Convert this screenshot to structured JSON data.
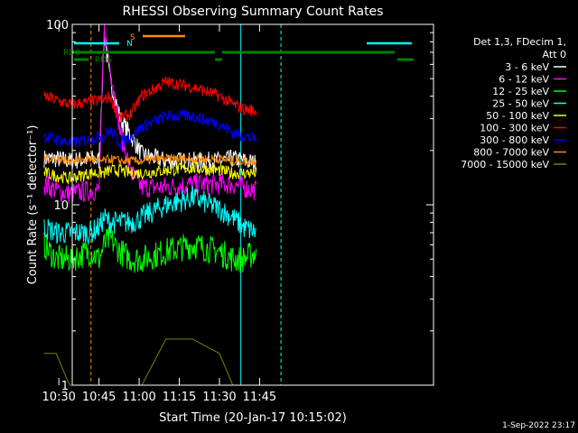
{
  "chart_data": {
    "type": "line",
    "title": "RHESSI Observing Summary Count Rates",
    "xlabel": "Start Time (20-Jan-17 10:15:02)",
    "ylabel": "Count Rate (s⁻¹ detector⁻¹)",
    "y_scale": "log",
    "ylim": [
      1,
      100
    ],
    "xlim_minutes": [
      20.0,
      155.0
    ],
    "xlim_time": [
      "10:35:02",
      "12:50:02"
    ],
    "x_ticks": [
      "10:30",
      "10:45",
      "11:00",
      "11:15",
      "11:30",
      "11:45"
    ],
    "x_tick_minutes": [
      15,
      30,
      45,
      60,
      75,
      90
    ],
    "y_ticks": [
      "1",
      "10",
      "100"
    ],
    "y_tick_values": [
      1,
      10,
      100
    ],
    "date_stamp": "1-Sep-2022 23:17",
    "legend": {
      "placement": "right",
      "header": [
        "Det 1,3, FDecim 1,",
        "Att 0"
      ],
      "entries": [
        {
          "label": "3 - 6 keV",
          "color": "#ffffff"
        },
        {
          "label": "6 - 12 keV",
          "color": "#ff00ff"
        },
        {
          "label": "12 - 25 keV",
          "color": "#00ff00"
        },
        {
          "label": "25 - 50 keV",
          "color": "#00ffff"
        },
        {
          "label": "50 - 100 keV",
          "color": "#ffff00"
        },
        {
          "label": "100 - 300 keV",
          "color": "#ff0000"
        },
        {
          "label": "300 - 800 keV",
          "color": "#0000ff"
        },
        {
          "label": "800 - 7000 keV",
          "color": "#ff8c00"
        },
        {
          "label": "7000 - 15000 keV",
          "color": "#808000"
        }
      ]
    },
    "flags": [
      {
        "label": "N",
        "color": "#00ffff"
      },
      {
        "label": "S",
        "color": "#ff8c00"
      },
      {
        "label": "RD0",
        "color": "#008000"
      },
      {
        "label": "RD6",
        "color": "#008000"
      }
    ],
    "series": [
      {
        "name": "3 - 6 keV",
        "color": "#ffffff",
        "x": [
          9.5,
          14,
          19,
          27,
          30,
          32,
          34,
          38,
          42,
          46,
          55,
          65,
          75,
          80,
          84,
          89,
          90.5
        ],
        "y": [
          18,
          18,
          17.5,
          18,
          17.5,
          90,
          50,
          30,
          24,
          19,
          17.5,
          17.5,
          17.5,
          18,
          17.5,
          17,
          null
        ],
        "noise": 0.12
      },
      {
        "name": "6 - 12 keV",
        "color": "#ff00ff",
        "x": [
          9.5,
          14,
          19,
          27,
          30,
          32,
          34,
          38,
          42,
          46,
          55,
          65,
          75,
          80,
          84,
          89,
          90.5
        ],
        "y": [
          13,
          12,
          11.5,
          12,
          12,
          95,
          60,
          25,
          15,
          12.5,
          12.5,
          13,
          13,
          13,
          12.5,
          12,
          null
        ],
        "noise": 0.14
      },
      {
        "name": "12 - 25 keV",
        "color": "#00ff00",
        "x": [
          9.5,
          14,
          19,
          27,
          30,
          32,
          34,
          38,
          42,
          46,
          55,
          65,
          75,
          80,
          84,
          89,
          90.5
        ],
        "y": [
          6,
          5,
          5,
          5.5,
          5,
          6,
          6.5,
          5.5,
          5,
          5,
          5.5,
          6,
          5.5,
          5,
          5,
          5.5,
          null
        ],
        "noise": 0.18
      },
      {
        "name": "25 - 50 keV",
        "color": "#00ffff",
        "x": [
          9.5,
          14,
          19,
          27,
          30,
          32,
          34,
          38,
          42,
          46,
          55,
          65,
          75,
          80,
          84,
          89,
          90.5
        ],
        "y": [
          7.5,
          7,
          7,
          7,
          7.5,
          8.5,
          8,
          8,
          8,
          8.5,
          10,
          11,
          9.5,
          8.5,
          7.5,
          7,
          null
        ],
        "noise": 0.15
      },
      {
        "name": "50 - 100 keV",
        "color": "#ffff00",
        "x": [
          9.5,
          14,
          19,
          27,
          30,
          32,
          34,
          38,
          42,
          46,
          55,
          65,
          75,
          80,
          84,
          89,
          90.5
        ],
        "y": [
          15,
          14.5,
          14,
          15,
          15,
          15,
          15.5,
          15.5,
          15,
          15,
          15.5,
          16,
          15.5,
          15,
          15,
          15,
          null
        ],
        "noise": 0.08
      },
      {
        "name": "100 - 300 keV",
        "color": "#ff0000",
        "x": [
          9.5,
          14,
          19,
          27,
          30,
          32,
          34,
          38,
          42,
          46,
          55,
          65,
          75,
          80,
          84,
          89,
          90.5
        ],
        "y": [
          40,
          38,
          36,
          37,
          38,
          38,
          40,
          30,
          32,
          40,
          48,
          45,
          40,
          36,
          34,
          33,
          null
        ],
        "noise": 0.08
      },
      {
        "name": "300 - 800 keV",
        "color": "#0000ff",
        "x": [
          9.5,
          14,
          19,
          27,
          30,
          32,
          34,
          38,
          42,
          46,
          55,
          65,
          75,
          80,
          84,
          89,
          90.5
        ],
        "y": [
          24,
          23,
          22,
          23,
          24,
          24,
          26,
          22,
          24,
          27,
          31,
          31,
          28,
          25,
          24,
          23,
          null
        ],
        "noise": 0.08
      },
      {
        "name": "800 - 7000 keV",
        "color": "#ff8c00",
        "x": [
          9.5,
          14,
          19,
          27,
          30,
          32,
          34,
          38,
          42,
          46,
          55,
          65,
          75,
          80,
          84,
          89,
          90.5
        ],
        "y": [
          18,
          18,
          17.5,
          18,
          17.5,
          17.5,
          18,
          17.5,
          17.5,
          17.5,
          18,
          18,
          18,
          17.5,
          17.5,
          17.5,
          null
        ],
        "noise": 0.06
      },
      {
        "name": "7000 - 15000 keV",
        "color": "#808000",
        "x": [
          9.5,
          14,
          19,
          27,
          30,
          32,
          34,
          38,
          42,
          46,
          55,
          65,
          75,
          80,
          84,
          89,
          90.5
        ],
        "y": [
          1.5,
          1.5,
          1,
          1,
          1,
          1,
          1,
          1,
          1,
          1,
          1.8,
          1.8,
          1.5,
          1,
          1,
          1,
          null
        ],
        "noise": 0.0
      }
    ]
  }
}
